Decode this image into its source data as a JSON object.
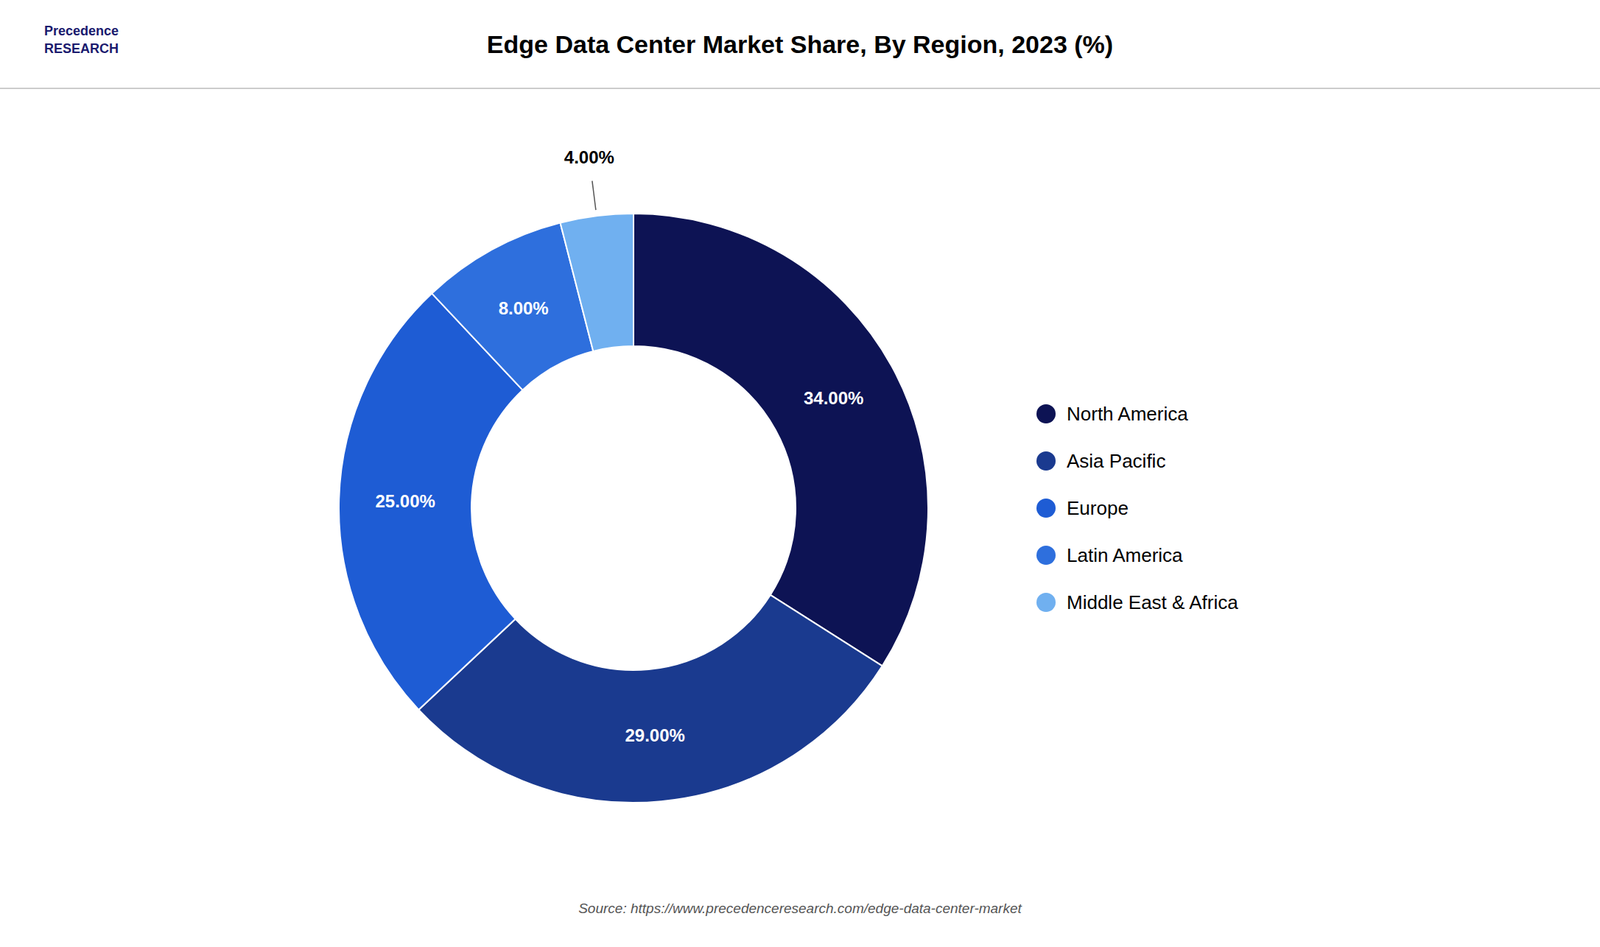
{
  "chart_data": {
    "type": "donut",
    "title": "Edge Data Center Market Share, By Region, 2023 (%)",
    "categories": [
      "North America",
      "Asia Pacific",
      "Europe",
      "Latin America",
      "Middle East & Africa"
    ],
    "values": [
      34.0,
      29.0,
      25.0,
      8.0,
      4.0
    ],
    "value_labels": [
      "34.00%",
      "29.00%",
      "25.00%",
      "8.00%",
      "4.00%"
    ],
    "colors": [
      "#0d1354",
      "#1a3a8f",
      "#1e5cd4",
      "#2e6fdd",
      "#70b0f0"
    ],
    "data_labels": true,
    "legend": "right",
    "annotations": [
      "Source: https://www.precedenceresearch.com/edge-data-center-market",
      "Precedence\nRESEARCH"
    ]
  }
}
